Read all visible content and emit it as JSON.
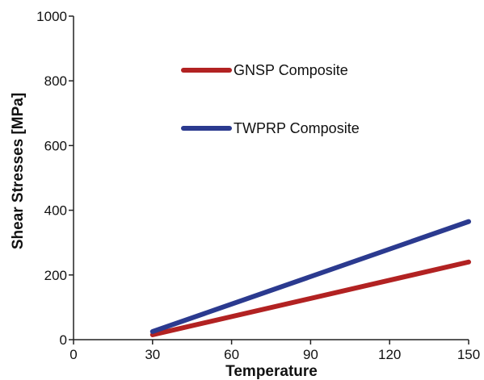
{
  "chart_data": {
    "type": "line",
    "title": "",
    "xlabel": "Temperature",
    "ylabel": "Shear Stresses [MPa]",
    "xlim": [
      0,
      150
    ],
    "ylim": [
      0,
      1000
    ],
    "x_ticks": [
      "0",
      "30",
      "60",
      "90",
      "120",
      "150"
    ],
    "y_ticks": [
      "0",
      "200",
      "400",
      "600",
      "800",
      "1000"
    ],
    "grid": false,
    "legend_position": "upper-middle",
    "series": [
      {
        "name": "GNSP Composite",
        "color": "#b22222",
        "x": [
          30,
          150
        ],
        "y": [
          15,
          240
        ]
      },
      {
        "name": "TWPRP Composite",
        "color": "#2b3a8f",
        "x": [
          30,
          150
        ],
        "y": [
          25,
          365
        ]
      }
    ]
  }
}
